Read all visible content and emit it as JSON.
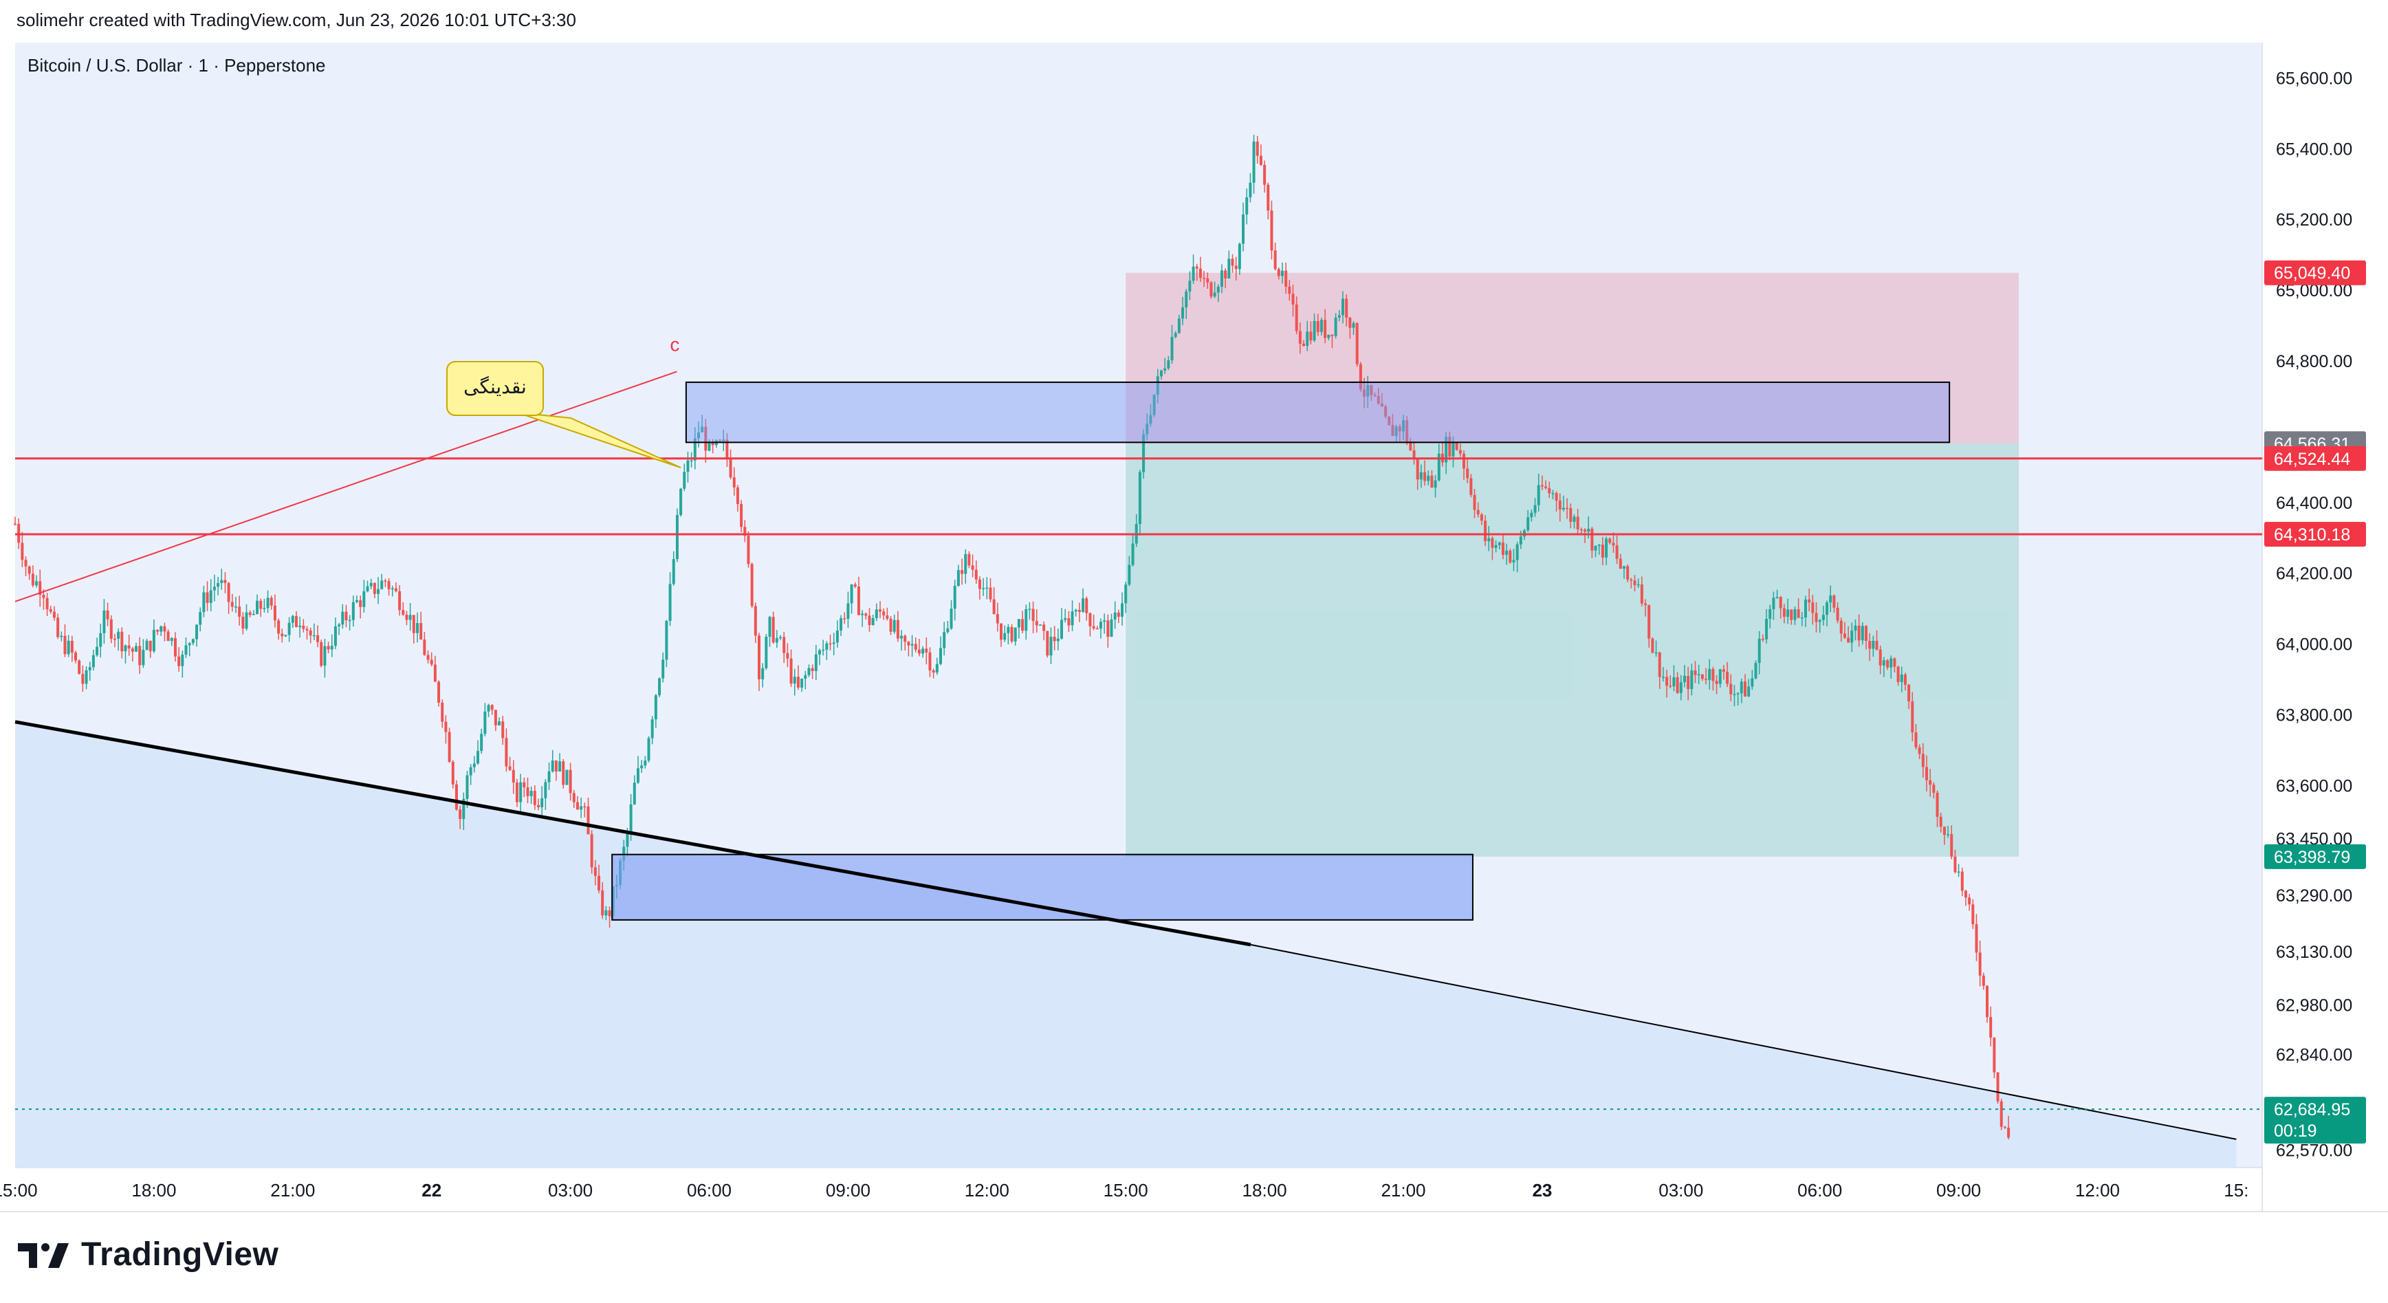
{
  "header": {
    "credit": "solimehr created with TradingView.com, Jun 23, 2026 10:01 UTC+3:30"
  },
  "footer": {
    "logo_text": "TradingView"
  },
  "colors": {
    "up": "#26a69a",
    "down": "#ef5350",
    "red_line": "#f23645",
    "short_box": "#e8a0b4",
    "target_box": "#9ed3cf",
    "zone": "#7f9cf5",
    "price_tag_dark": "#089981",
    "gray_tag": "#787b86"
  },
  "chart_data": {
    "type": "candlestick",
    "title": "Bitcoin / U.S. Dollar · 1 · Pepperstone",
    "ylim": [
      62520,
      65700
    ],
    "y_ticks": [
      "65,600.00",
      "65,400.00",
      "65,200.00",
      "65,000.00",
      "64,800.00",
      "64,400.00",
      "64,200.00",
      "64,000.00",
      "63,800.00",
      "63,600.00",
      "63,450.00",
      "63,290.00",
      "63,130.00",
      "62,980.00",
      "62,840.00",
      "62,570.00"
    ],
    "y_tick_values": [
      65600,
      65400,
      65200,
      65000,
      64800,
      64400,
      64200,
      64000,
      63800,
      63600,
      63450,
      63290,
      63130,
      62980,
      62840,
      62570
    ],
    "x_ticks": [
      "15:00",
      "18:00",
      "21:00",
      "22",
      "03:00",
      "06:00",
      "09:00",
      "12:00",
      "15:00",
      "18:00",
      "21:00",
      "23",
      "03:00",
      "06:00",
      "09:00",
      "12:00",
      "15:"
    ],
    "x_tick_hours": [
      0,
      3,
      6,
      9,
      12,
      15,
      18,
      21,
      24,
      27,
      30,
      33,
      36,
      39,
      42,
      45,
      48
    ],
    "x_tick_bold": [
      false,
      false,
      false,
      true,
      false,
      false,
      false,
      false,
      false,
      false,
      false,
      true,
      false,
      false,
      false,
      false,
      false
    ],
    "price_path": [
      [
        0.0,
        64340
      ],
      [
        0.3,
        64190
      ],
      [
        0.6,
        64160
      ],
      [
        0.9,
        64020
      ],
      [
        1.2,
        63980
      ],
      [
        1.5,
        63880
      ],
      [
        1.9,
        64070
      ],
      [
        2.3,
        64010
      ],
      [
        2.7,
        63960
      ],
      [
        3.2,
        64060
      ],
      [
        3.6,
        63950
      ],
      [
        4.1,
        64130
      ],
      [
        4.4,
        64180
      ],
      [
        4.7,
        64100
      ],
      [
        5.0,
        64060
      ],
      [
        5.4,
        64120
      ],
      [
        5.8,
        64030
      ],
      [
        6.2,
        64080
      ],
      [
        6.6,
        63960
      ],
      [
        7.0,
        64050
      ],
      [
        7.4,
        64120
      ],
      [
        8.0,
        64180
      ],
      [
        8.4,
        64110
      ],
      [
        8.8,
        64000
      ],
      [
        9.2,
        63830
      ],
      [
        9.4,
        63680
      ],
      [
        9.6,
        63500
      ],
      [
        9.8,
        63640
      ],
      [
        10.0,
        63700
      ],
      [
        10.2,
        63820
      ],
      [
        10.5,
        63760
      ],
      [
        10.8,
        63560
      ],
      [
        11.0,
        63600
      ],
      [
        11.3,
        63560
      ],
      [
        11.6,
        63680
      ],
      [
        11.9,
        63620
      ],
      [
        12.3,
        63520
      ],
      [
        12.6,
        63280
      ],
      [
        12.8,
        63220
      ],
      [
        13.0,
        63330
      ],
      [
        13.2,
        63440
      ],
      [
        13.4,
        63610
      ],
      [
        13.6,
        63680
      ],
      [
        13.8,
        63830
      ],
      [
        14.0,
        63980
      ],
      [
        14.2,
        64200
      ],
      [
        14.4,
        64460
      ],
      [
        14.6,
        64520
      ],
      [
        14.8,
        64620
      ],
      [
        15.0,
        64540
      ],
      [
        15.3,
        64560
      ],
      [
        15.6,
        64440
      ],
      [
        15.9,
        64160
      ],
      [
        16.1,
        63900
      ],
      [
        16.3,
        64050
      ],
      [
        16.6,
        63980
      ],
      [
        16.9,
        63860
      ],
      [
        17.2,
        63940
      ],
      [
        17.5,
        63990
      ],
      [
        17.8,
        64050
      ],
      [
        18.1,
        64150
      ],
      [
        18.4,
        64060
      ],
      [
        18.8,
        64100
      ],
      [
        19.2,
        63980
      ],
      [
        19.6,
        64000
      ],
      [
        19.9,
        63920
      ],
      [
        20.2,
        64100
      ],
      [
        20.5,
        64240
      ],
      [
        20.8,
        64200
      ],
      [
        21.1,
        64100
      ],
      [
        21.4,
        64010
      ],
      [
        21.7,
        64060
      ],
      [
        22.0,
        64080
      ],
      [
        22.3,
        63990
      ],
      [
        22.6,
        64040
      ],
      [
        23.0,
        64120
      ],
      [
        23.3,
        64060
      ],
      [
        23.7,
        64040
      ],
      [
        24.0,
        64160
      ],
      [
        24.2,
        64300
      ],
      [
        24.4,
        64600
      ],
      [
        24.6,
        64700
      ],
      [
        24.9,
        64820
      ],
      [
        25.2,
        64960
      ],
      [
        25.5,
        65060
      ],
      [
        25.8,
        65000
      ],
      [
        26.1,
        65050
      ],
      [
        26.4,
        65080
      ],
      [
        26.6,
        65250
      ],
      [
        26.8,
        65430
      ],
      [
        27.0,
        65280
      ],
      [
        27.2,
        65100
      ],
      [
        27.5,
        64980
      ],
      [
        27.8,
        64860
      ],
      [
        28.1,
        64900
      ],
      [
        28.4,
        64880
      ],
      [
        28.7,
        64970
      ],
      [
        28.9,
        64900
      ],
      [
        29.1,
        64720
      ],
      [
        29.4,
        64680
      ],
      [
        29.7,
        64600
      ],
      [
        30.0,
        64620
      ],
      [
        30.3,
        64480
      ],
      [
        30.6,
        64460
      ],
      [
        30.9,
        64560
      ],
      [
        31.2,
        64560
      ],
      [
        31.5,
        64420
      ],
      [
        31.8,
        64280
      ],
      [
        32.1,
        64280
      ],
      [
        32.4,
        64240
      ],
      [
        32.7,
        64360
      ],
      [
        33.0,
        64440
      ],
      [
        33.3,
        64420
      ],
      [
        33.6,
        64360
      ],
      [
        33.9,
        64340
      ],
      [
        34.2,
        64260
      ],
      [
        34.5,
        64280
      ],
      [
        34.8,
        64180
      ],
      [
        35.1,
        64180
      ],
      [
        35.4,
        63980
      ],
      [
        35.7,
        63880
      ],
      [
        36.0,
        63880
      ],
      [
        36.3,
        63910
      ],
      [
        36.6,
        63920
      ],
      [
        36.9,
        63910
      ],
      [
        37.2,
        63860
      ],
      [
        37.5,
        63880
      ],
      [
        37.8,
        64060
      ],
      [
        38.1,
        64140
      ],
      [
        38.4,
        64060
      ],
      [
        38.7,
        64100
      ],
      [
        39.0,
        64080
      ],
      [
        39.3,
        64120
      ],
      [
        39.6,
        64000
      ],
      [
        39.9,
        64040
      ],
      [
        40.2,
        63980
      ],
      [
        40.5,
        63950
      ],
      [
        40.8,
        63890
      ],
      [
        41.1,
        63700
      ],
      [
        41.4,
        63590
      ],
      [
        41.7,
        63480
      ],
      [
        42.0,
        63350
      ],
      [
        42.3,
        63200
      ],
      [
        42.5,
        63060
      ],
      [
        42.7,
        62900
      ],
      [
        42.9,
        62640
      ],
      [
        43.1,
        62600
      ]
    ],
    "annotations": {
      "label_c": "c",
      "callout_text": "نقدینگی",
      "horizontal_levels": [
        {
          "price": 64524.44,
          "label": "64,524.44"
        },
        {
          "price": 64310.18,
          "label": "64,310.18"
        }
      ],
      "stop_tag": {
        "price": 65049.4,
        "label": "65,049.40"
      },
      "entry_tag": {
        "price": 64566.31,
        "label": "64,566.31"
      },
      "target_tag": {
        "price": 63398.79,
        "label": "63,398.79"
      },
      "last_price": {
        "price": 62684.95,
        "label": "62,684.95",
        "countdown": "00:19"
      },
      "position_short": {
        "start_hour": 24.0,
        "end_hour": 43.3,
        "entry": 64566.31,
        "stop": 65049.4,
        "target": 63398.79
      },
      "zones": [
        {
          "start_hour": 14.5,
          "end_hour": 41.8,
          "top": 64740,
          "bottom": 64570
        },
        {
          "start_hour": 12.9,
          "end_hour": 31.5,
          "top": 63405,
          "bottom": 63220
        }
      ],
      "trendline_red": {
        "from": [
          0.0,
          64120
        ],
        "to": [
          14.3,
          64770
        ]
      },
      "trendline_black": {
        "from": [
          0.0,
          63780
        ],
        "to": [
          26.7,
          63150
        ],
        "extend_to": [
          48.0,
          62600
        ]
      }
    }
  }
}
